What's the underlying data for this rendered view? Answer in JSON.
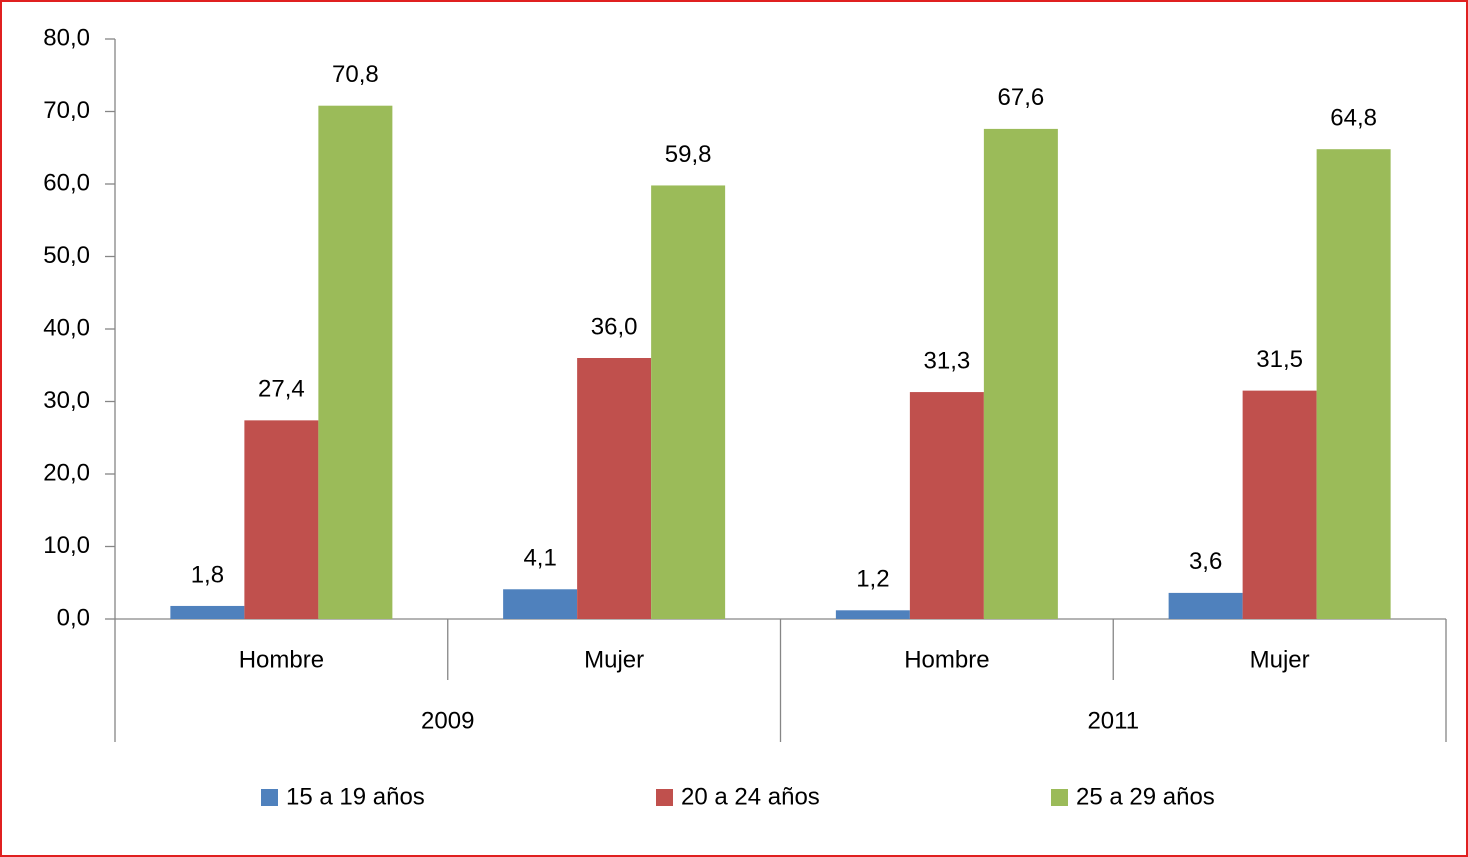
{
  "chart_data": {
    "type": "bar",
    "categories": [
      "Hombre",
      "Mujer",
      "Hombre",
      "Mujer"
    ],
    "category_groups": [
      "2009",
      "2009",
      "2011",
      "2011"
    ],
    "series": [
      {
        "name": "15 a 19 años",
        "color": "#4f81bd",
        "values": [
          1.8,
          4.1,
          1.2,
          3.6
        ],
        "value_labels": [
          "1,8",
          "4,1",
          "1,2",
          "3,6"
        ]
      },
      {
        "name": "20 a 24 años",
        "color": "#c0504d",
        "values": [
          27.4,
          36.0,
          31.3,
          31.5
        ],
        "value_labels": [
          "27,4",
          "36,0",
          "31,3",
          "31,5"
        ]
      },
      {
        "name": "25 a 29 años",
        "color": "#9bbb59",
        "values": [
          70.8,
          59.8,
          67.6,
          64.8
        ],
        "value_labels": [
          "70,8",
          "59,8",
          "67,6",
          "64,8"
        ]
      }
    ],
    "ylim": [
      0,
      80
    ],
    "yticks": [
      {
        "value": 0,
        "label": "0,0"
      },
      {
        "value": 10,
        "label": "10,0"
      },
      {
        "value": 20,
        "label": "20,0"
      },
      {
        "value": 30,
        "label": "30,0"
      },
      {
        "value": 40,
        "label": "40,0"
      },
      {
        "value": 50,
        "label": "50,0"
      },
      {
        "value": 60,
        "label": "60,0"
      },
      {
        "value": 70,
        "label": "70,0"
      },
      {
        "value": 80,
        "label": "80,0"
      }
    ],
    "grid": false,
    "legend": "bottom"
  }
}
